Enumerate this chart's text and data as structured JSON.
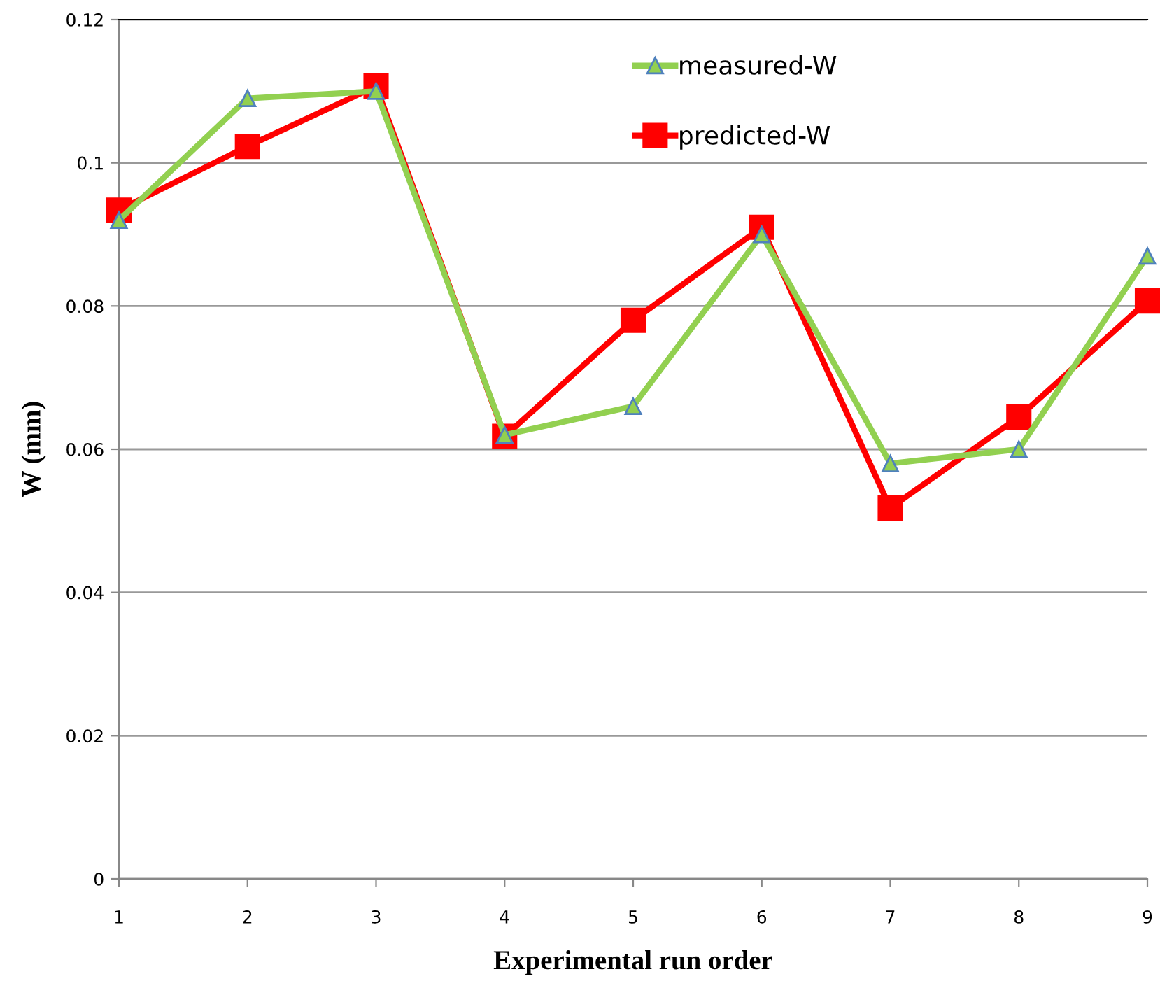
{
  "chart_data": {
    "type": "line",
    "xlabel": "Experimental run order",
    "ylabel": "W (mm)",
    "x": [
      1,
      2,
      3,
      4,
      5,
      6,
      7,
      8,
      9
    ],
    "series": [
      {
        "name": "measured-W",
        "color": "#92d050",
        "marker": "triangle",
        "values": [
          0.092,
          0.109,
          0.11,
          0.062,
          0.066,
          0.09,
          0.058,
          0.06,
          0.087
        ]
      },
      {
        "name": "predicted-W",
        "color": "#ff0000",
        "marker": "square",
        "values": [
          0.0934,
          0.1023,
          0.1107,
          0.0618,
          0.078,
          0.091,
          0.0518,
          0.0645,
          0.0807
        ]
      }
    ],
    "xlim": [
      1,
      9
    ],
    "xticks": [
      1,
      2,
      3,
      4,
      5,
      6,
      7,
      8,
      9
    ],
    "ylim": [
      0,
      0.12
    ],
    "yticks": [
      0,
      0.02,
      0.04,
      0.06,
      0.08,
      {
        "value": 0.1,
        "label": "0.1"
      },
      0.12
    ],
    "grid": "y",
    "legend": "top",
    "line_style": "solid"
  }
}
